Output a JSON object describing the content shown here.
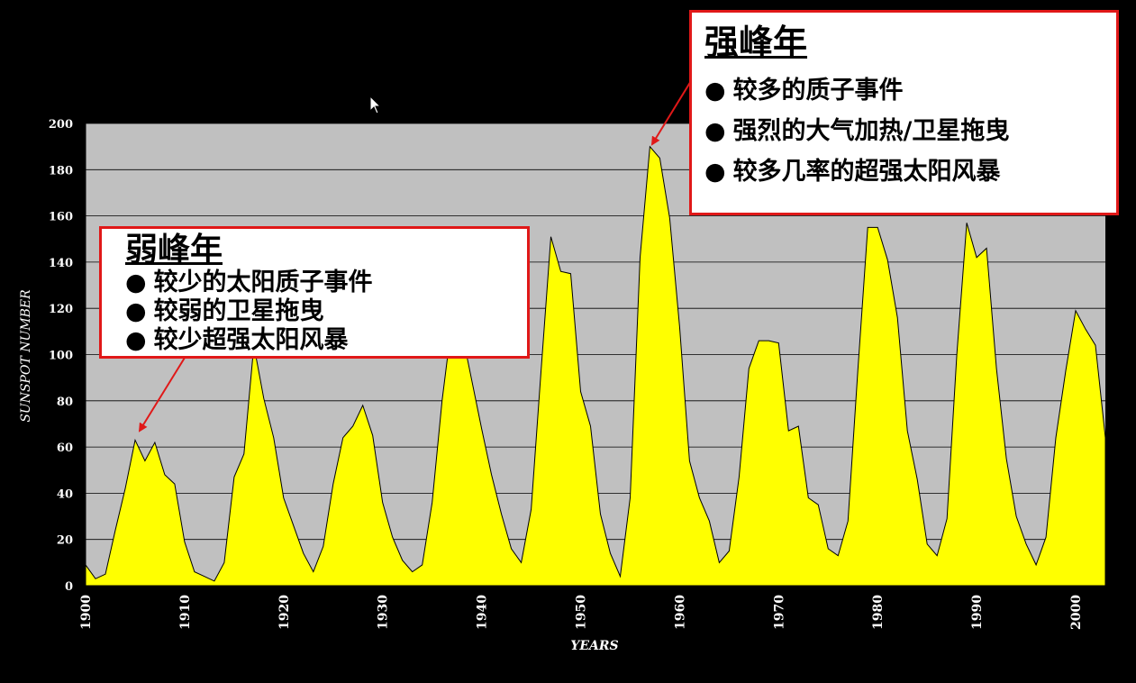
{
  "chart_data": {
    "type": "area",
    "xlabel": "YEARS",
    "ylabel": "SUNSPOT NUMBER",
    "xlim": [
      1900,
      2003
    ],
    "ylim": [
      0,
      200
    ],
    "yticks": [
      0,
      20,
      40,
      60,
      80,
      100,
      120,
      140,
      160,
      180,
      200
    ],
    "xticks": [
      1900,
      1910,
      1920,
      1930,
      1940,
      1950,
      1960,
      1970,
      1980,
      1990,
      2000
    ],
    "grid": true,
    "colors": {
      "fill": "#ffff00",
      "plot_bg": "#c0c0c0",
      "background": "#000000",
      "callout_border": "#e01818"
    },
    "x": [
      1900,
      1901,
      1902,
      1903,
      1904,
      1905,
      1906,
      1907,
      1908,
      1909,
      1910,
      1911,
      1912,
      1913,
      1914,
      1915,
      1916,
      1917,
      1918,
      1919,
      1920,
      1921,
      1922,
      1923,
      1924,
      1925,
      1926,
      1927,
      1928,
      1929,
      1930,
      1931,
      1932,
      1933,
      1934,
      1935,
      1936,
      1937,
      1938,
      1939,
      1940,
      1941,
      1942,
      1943,
      1944,
      1945,
      1946,
      1947,
      1948,
      1949,
      1950,
      1951,
      1952,
      1953,
      1954,
      1955,
      1956,
      1957,
      1958,
      1959,
      1960,
      1961,
      1962,
      1963,
      1964,
      1965,
      1966,
      1967,
      1968,
      1969,
      1970,
      1971,
      1972,
      1973,
      1974,
      1975,
      1976,
      1977,
      1978,
      1979,
      1980,
      1981,
      1982,
      1983,
      1984,
      1985,
      1986,
      1987,
      1988,
      1989,
      1990,
      1991,
      1992,
      1993,
      1994,
      1995,
      1996,
      1997,
      1998,
      1999,
      2000,
      2001,
      2002,
      2003
    ],
    "y": [
      9,
      3,
      5,
      24,
      42,
      63,
      54,
      62,
      48,
      44,
      19,
      6,
      4,
      2,
      10,
      47,
      57,
      104,
      81,
      64,
      38,
      26,
      14,
      6,
      17,
      44,
      64,
      69,
      78,
      65,
      36,
      21,
      11,
      6,
      9,
      36,
      80,
      114,
      110,
      89,
      68,
      48,
      31,
      16,
      10,
      33,
      93,
      151,
      136,
      135,
      84,
      69,
      31,
      14,
      4,
      38,
      142,
      190,
      185,
      159,
      112,
      54,
      38,
      28,
      10,
      15,
      47,
      94,
      106,
      106,
      105,
      67,
      69,
      38,
      35,
      16,
      13,
      28,
      93,
      155,
      155,
      141,
      116,
      67,
      46,
      18,
      13,
      29,
      100,
      157,
      142,
      146,
      94,
      55,
      30,
      18,
      9,
      21,
      64,
      93,
      119,
      111,
      104,
      64
    ]
  },
  "weak_box": {
    "title": "弱峰年",
    "items": [
      "较少的太阳质子事件",
      "较弱的卫星拖曳",
      "较少超强太阳风暴"
    ]
  },
  "strong_box": {
    "title": "强峰年",
    "items": [
      "较多的质子事件",
      "强烈的大气加热/卫星拖曳",
      "较多几率的超强太阳风暴"
    ]
  }
}
